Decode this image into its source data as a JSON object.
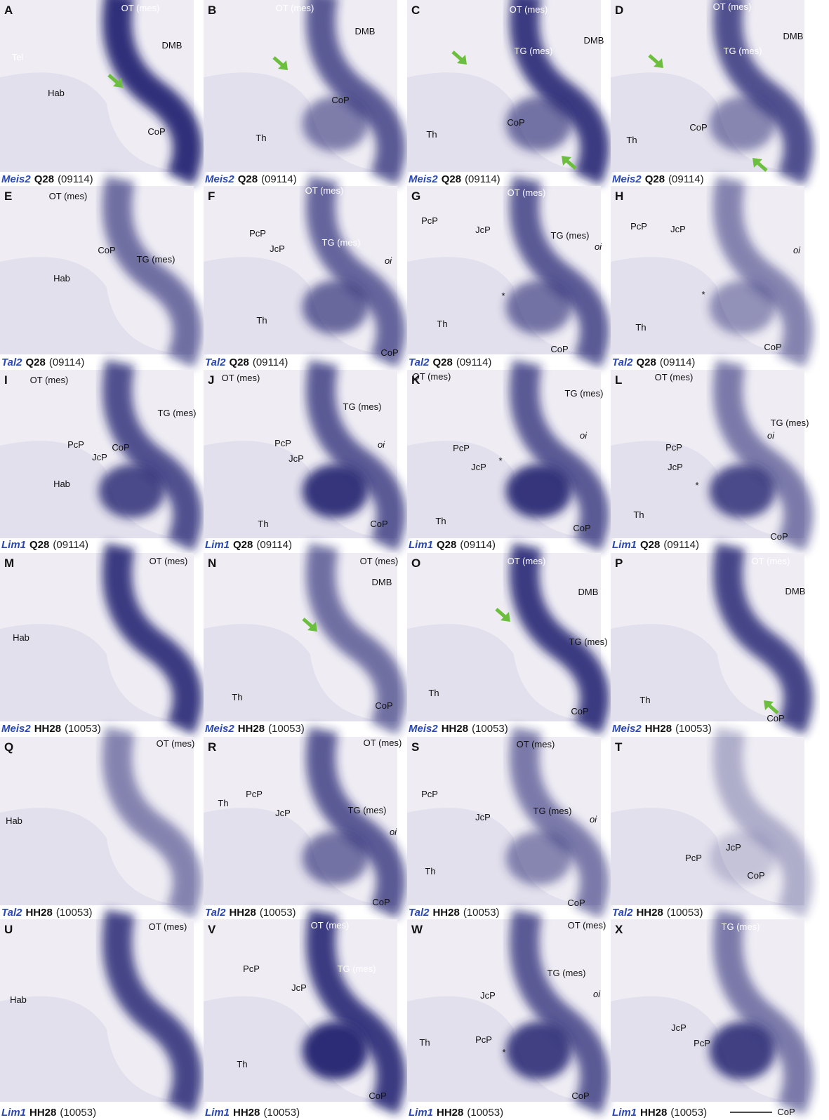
{
  "panels": [
    {
      "letter": "A",
      "labels": [
        "OT (mes)",
        "DMB",
        "Tel",
        "Hab",
        "CoP"
      ],
      "caption": {
        "gene": "Meis2",
        "stage": "Q28",
        "id": "(09114)"
      }
    },
    {
      "letter": "B",
      "labels": [
        "OT (mes)",
        "DMB",
        "CoP",
        "Th"
      ],
      "caption": {
        "gene": "Meis2",
        "stage": "Q28",
        "id": "(09114)"
      }
    },
    {
      "letter": "C",
      "labels": [
        "OT (mes)",
        "TG (mes)",
        "DMB",
        "CoP",
        "Th"
      ],
      "caption": {
        "gene": "Meis2",
        "stage": "Q28",
        "id": "(09114)"
      }
    },
    {
      "letter": "D",
      "labels": [
        "OT (mes)",
        "DMB",
        "TG (mes)",
        "CoP",
        "Th"
      ],
      "caption": {
        "gene": "Meis2",
        "stage": "Q28",
        "id": "(09114)"
      }
    },
    {
      "letter": "E",
      "labels": [
        "OT (mes)",
        "TG (mes)",
        "CoP",
        "Hab"
      ],
      "caption": {
        "gene": "Tal2",
        "stage": "Q28",
        "id": "(09114)"
      }
    },
    {
      "letter": "F",
      "labels": [
        "OT (mes)",
        "PcP",
        "JcP",
        "TG (mes)",
        "oi",
        "Th",
        "CoP"
      ],
      "caption": {
        "gene": "Tal2",
        "stage": "Q28",
        "id": "(09114)"
      }
    },
    {
      "letter": "G",
      "labels": [
        "OT (mes)",
        "PcP",
        "JcP",
        "TG (mes)",
        "oi",
        "*",
        "Th",
        "CoP"
      ],
      "caption": {
        "gene": "Tal2",
        "stage": "Q28",
        "id": "(09114)"
      }
    },
    {
      "letter": "H",
      "labels": [
        "PcP",
        "JcP",
        "oi",
        "*",
        "Th",
        "CoP"
      ],
      "caption": {
        "gene": "Tal2",
        "stage": "Q28",
        "id": "(09114)"
      }
    },
    {
      "letter": "I",
      "labels": [
        "OT (mes)",
        "TG (mes)",
        "PcP",
        "JcP",
        "CoP",
        "Hab"
      ],
      "caption": {
        "gene": "Lim1",
        "stage": "Q28",
        "id": "(09114)"
      }
    },
    {
      "letter": "J",
      "labels": [
        "OT (mes)",
        "TG (mes)",
        "oi",
        "PcP",
        "JcP",
        "Th",
        "CoP"
      ],
      "caption": {
        "gene": "Lim1",
        "stage": "Q28",
        "id": "(09114)"
      }
    },
    {
      "letter": "K",
      "labels": [
        "OT (mes)",
        "TG (mes)",
        "oi",
        "PcP",
        "JcP",
        "*",
        "Th",
        "CoP"
      ],
      "caption": {
        "gene": "Lim1",
        "stage": "Q28",
        "id": "(09114)"
      }
    },
    {
      "letter": "L",
      "labels": [
        "OT (mes)",
        "TG (mes)",
        "oi",
        "PcP",
        "JcP",
        "*",
        "Th",
        "CoP"
      ],
      "caption": {
        "gene": "Lim1",
        "stage": "Q28",
        "id": "(09114)"
      }
    },
    {
      "letter": "M",
      "labels": [
        "OT (mes)",
        "Hab"
      ],
      "caption": {
        "gene": "Meis2",
        "stage": "HH28",
        "id": "(10053)"
      }
    },
    {
      "letter": "N",
      "labels": [
        "OT (mes)",
        "DMB",
        "Th",
        "CoP"
      ],
      "caption": {
        "gene": "Meis2",
        "stage": "HH28",
        "id": "(10053)"
      }
    },
    {
      "letter": "O",
      "labels": [
        "OT (mes)",
        "DMB",
        "TG (mes)",
        "Th",
        "CoP"
      ],
      "caption": {
        "gene": "Meis2",
        "stage": "HH28",
        "id": "(10053)"
      }
    },
    {
      "letter": "P",
      "labels": [
        "OT (mes)",
        "DMB",
        "Th",
        "CoP"
      ],
      "caption": {
        "gene": "Meis2",
        "stage": "HH28",
        "id": "(10053)"
      }
    },
    {
      "letter": "Q",
      "labels": [
        "OT (mes)",
        "Hab"
      ],
      "caption": {
        "gene": "Tal2",
        "stage": "HH28",
        "id": "(10053)"
      }
    },
    {
      "letter": "R",
      "labels": [
        "OT (mes)",
        "PcP",
        "JcP",
        "TG (mes)",
        "oi",
        "Th",
        "CoP"
      ],
      "caption": {
        "gene": "Tal2",
        "stage": "HH28",
        "id": "(10053)"
      }
    },
    {
      "letter": "S",
      "labels": [
        "OT (mes)",
        "PcP",
        "JcP",
        "TG (mes)",
        "oi",
        "Th",
        "CoP"
      ],
      "caption": {
        "gene": "Tal2",
        "stage": "HH28",
        "id": "(10053)"
      }
    },
    {
      "letter": "T",
      "labels": [
        "JcP",
        "PcP",
        "CoP"
      ],
      "caption": {
        "gene": "Tal2",
        "stage": "HH28",
        "id": "(10053)"
      }
    },
    {
      "letter": "U",
      "labels": [
        "OT (mes)",
        "Hab"
      ],
      "caption": {
        "gene": "Lim1",
        "stage": "HH28",
        "id": "(10053)"
      }
    },
    {
      "letter": "V",
      "labels": [
        "OT (mes)",
        "PcP",
        "JcP",
        "TG (mes)",
        "Th",
        "CoP"
      ],
      "caption": {
        "gene": "Lim1",
        "stage": "HH28",
        "id": "(10053)"
      }
    },
    {
      "letter": "W",
      "labels": [
        "OT (mes)",
        "TG (mes)",
        "oi",
        "JcP",
        "PcP",
        "*",
        "Th",
        "CoP"
      ],
      "caption": {
        "gene": "Lim1",
        "stage": "HH28",
        "id": "(10053)"
      }
    },
    {
      "letter": "X",
      "labels": [
        "TG (mes)",
        "JcP",
        "PcP",
        "CoP"
      ],
      "caption": {
        "gene": "Lim1",
        "stage": "HH28",
        "id": "(10053)"
      }
    }
  ]
}
